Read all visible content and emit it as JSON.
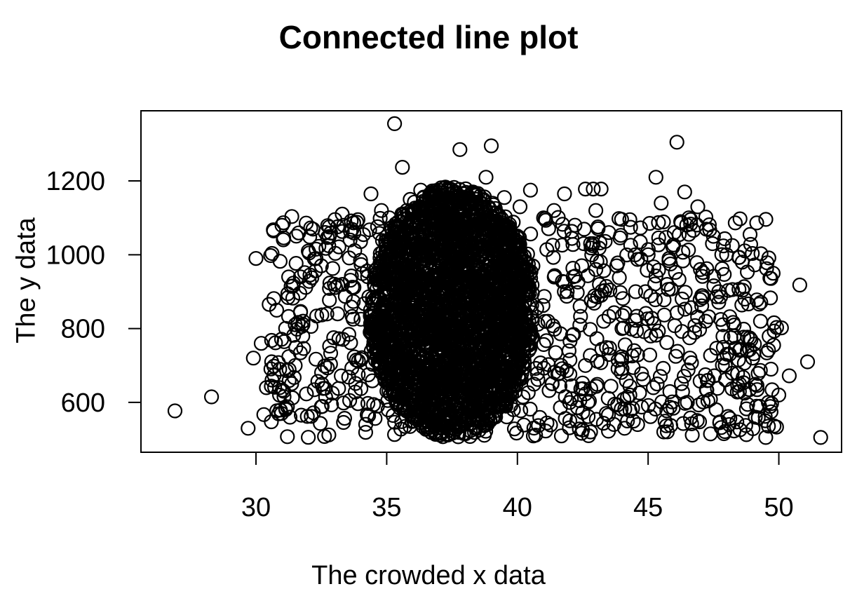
{
  "chart_data": {
    "type": "scatter",
    "title": "Connected line plot",
    "xlabel": "The crowded x data",
    "ylabel": "The y data",
    "xlim": [
      25.6,
      52.4
    ],
    "ylim": [
      465,
      1390
    ],
    "xticks": [
      30,
      35,
      40,
      45,
      50
    ],
    "yticks": [
      600,
      800,
      1000,
      1200
    ],
    "grid": false,
    "marker": "open-circle",
    "marker_color": "#000000",
    "dense_region": {
      "x_range": [
        34.2,
        40.8
      ],
      "y_range": [
        505,
        1185
      ],
      "note": "heavily overplotted"
    },
    "points": [
      [
        26.9,
        577
      ],
      [
        28.3,
        615
      ],
      [
        29.7,
        530
      ],
      [
        29.9,
        720
      ],
      [
        30.0,
        990
      ],
      [
        30.2,
        760
      ],
      [
        30.3,
        567
      ],
      [
        30.4,
        640
      ],
      [
        30.6,
        710
      ],
      [
        30.9,
        640
      ],
      [
        31.3,
        560
      ],
      [
        31.5,
        700
      ],
      [
        31.7,
        940
      ],
      [
        31.8,
        820
      ],
      [
        32.0,
        1010
      ],
      [
        32.3,
        1015
      ],
      [
        32.5,
        970
      ],
      [
        32.8,
        1075
      ],
      [
        33.0,
        920
      ],
      [
        33.3,
        1110
      ],
      [
        33.6,
        1040
      ],
      [
        33.9,
        1095
      ],
      [
        34.0,
        985
      ],
      [
        34.4,
        1165
      ],
      [
        34.8,
        1120
      ],
      [
        35.1,
        1100
      ],
      [
        35.3,
        1355
      ],
      [
        35.6,
        1237
      ],
      [
        35.9,
        1150
      ],
      [
        36.3,
        1175
      ],
      [
        36.8,
        1160
      ],
      [
        37.2,
        1180
      ],
      [
        37.8,
        1285
      ],
      [
        38.3,
        1170
      ],
      [
        38.8,
        1210
      ],
      [
        39.0,
        1295
      ],
      [
        39.5,
        1155
      ],
      [
        40.1,
        1130
      ],
      [
        40.5,
        1175
      ],
      [
        41.0,
        1100
      ],
      [
        41.4,
        1120
      ],
      [
        41.8,
        1165
      ],
      [
        42.2,
        1080
      ],
      [
        42.6,
        1178
      ],
      [
        42.9,
        1178
      ],
      [
        43.2,
        1178
      ],
      [
        43.0,
        1120
      ],
      [
        42.8,
        1030
      ],
      [
        42.9,
        1030
      ],
      [
        43.5,
        1060
      ],
      [
        43.0,
        960
      ],
      [
        42.4,
        860
      ],
      [
        42.6,
        700
      ],
      [
        42.7,
        600
      ],
      [
        42.8,
        520
      ],
      [
        43.2,
        890
      ],
      [
        43.5,
        730
      ],
      [
        43.4,
        570
      ],
      [
        43.8,
        970
      ],
      [
        44.0,
        800
      ],
      [
        44.1,
        530
      ],
      [
        44.3,
        620
      ],
      [
        44.3,
        1095
      ],
      [
        44.6,
        540
      ],
      [
        44.7,
        1035
      ],
      [
        44.9,
        900
      ],
      [
        45.0,
        1000
      ],
      [
        45.1,
        780
      ],
      [
        45.2,
        640
      ],
      [
        45.3,
        1210
      ],
      [
        45.5,
        1140
      ],
      [
        45.6,
        520
      ],
      [
        45.8,
        990
      ],
      [
        46.0,
        1060
      ],
      [
        46.1,
        1305
      ],
      [
        46.3,
        880
      ],
      [
        46.4,
        1170
      ],
      [
        46.5,
        600
      ],
      [
        46.6,
        720
      ],
      [
        46.9,
        1130
      ],
      [
        47.0,
        960
      ],
      [
        47.2,
        820
      ],
      [
        47.3,
        660
      ],
      [
        47.5,
        1050
      ],
      [
        47.6,
        580
      ],
      [
        47.7,
        900
      ],
      [
        47.9,
        720
      ],
      [
        48.0,
        1000
      ],
      [
        48.1,
        540
      ],
      [
        48.3,
        780
      ],
      [
        48.5,
        650
      ],
      [
        48.6,
        980
      ],
      [
        48.7,
        880
      ],
      [
        48.9,
        1055
      ],
      [
        49.0,
        720
      ],
      [
        49.1,
        560
      ],
      [
        49.3,
        820
      ],
      [
        49.5,
        505
      ],
      [
        49.6,
        600
      ],
      [
        49.7,
        690
      ],
      [
        49.8,
        755
      ],
      [
        50.0,
        620
      ],
      [
        50.1,
        802
      ],
      [
        50.4,
        672
      ],
      [
        50.8,
        918
      ],
      [
        51.1,
        710
      ],
      [
        51.6,
        505
      ]
    ]
  }
}
